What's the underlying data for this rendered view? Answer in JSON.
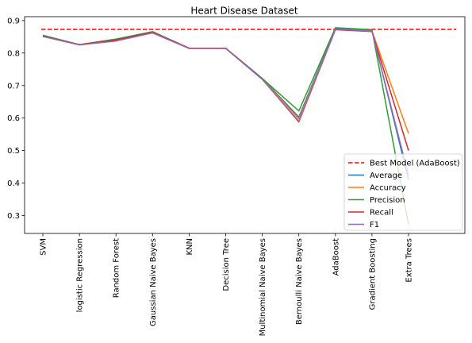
{
  "chart_data": {
    "type": "line",
    "title": "Heart Disease Dataset",
    "xlabel": "",
    "ylabel": "",
    "categories": [
      "SVM",
      "logistic Regression",
      "Random Forest",
      "Gaussian Naive Bayes",
      "KNN",
      "Decision Tree",
      "Multinomial Naive Bayes",
      "Bernoulli Naive Bayes",
      "AdaBoost",
      "Gradient Boosting",
      "Extra Trees"
    ],
    "ylim": [
      0.245,
      0.912
    ],
    "yticks": [
      0.3,
      0.4,
      0.5,
      0.6,
      0.7,
      0.8,
      0.9
    ],
    "ytick_labels": [
      "0.3",
      "0.4",
      "0.5",
      "0.6",
      "0.7",
      "0.8",
      "0.9"
    ],
    "reference_line": {
      "name": "Best Model (AdaBoost)",
      "value": 0.873,
      "color": "#ff0000",
      "style": "dashed"
    },
    "series": [
      {
        "name": "Average",
        "color": "#1f77b4",
        "values": [
          0.852,
          0.826,
          0.838,
          0.864,
          0.815,
          0.815,
          0.722,
          0.603,
          0.875,
          0.87,
          0.41
        ]
      },
      {
        "name": "Accuracy",
        "color": "#ff7f0e",
        "values": [
          0.852,
          0.826,
          0.843,
          0.865,
          0.815,
          0.815,
          0.721,
          0.597,
          0.873,
          0.868,
          0.552
        ]
      },
      {
        "name": "Precision",
        "color": "#2ca02c",
        "values": [
          0.855,
          0.826,
          0.843,
          0.866,
          0.815,
          0.815,
          0.722,
          0.622,
          0.878,
          0.872,
          0.272
        ]
      },
      {
        "name": "Recall",
        "color": "#d62728",
        "values": [
          0.852,
          0.826,
          0.84,
          0.864,
          0.815,
          0.815,
          0.72,
          0.588,
          0.872,
          0.866,
          0.5
        ]
      },
      {
        "name": "F1",
        "color": "#9467bd",
        "values": [
          0.851,
          0.825,
          0.837,
          0.862,
          0.814,
          0.814,
          0.719,
          0.59,
          0.874,
          0.867,
          0.423
        ]
      }
    ],
    "grid": false,
    "legend": "lower-right"
  }
}
